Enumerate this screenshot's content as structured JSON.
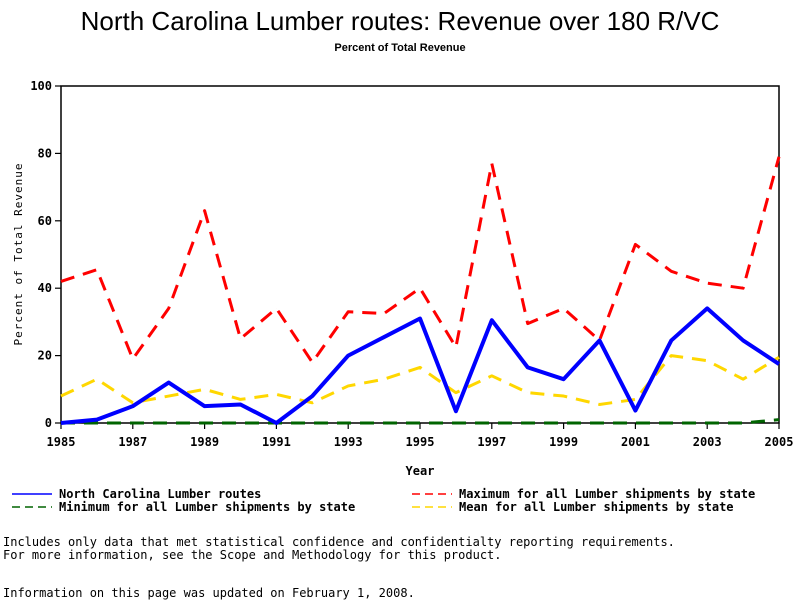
{
  "chart_data": {
    "type": "line",
    "title": "North Carolina Lumber routes: Revenue over 180 R/VC",
    "subtitle": "Percent of Total Revenue",
    "xlabel": "Year",
    "ylabel": "Percent of Total Revenue",
    "xlim": [
      1985,
      2005
    ],
    "ylim": [
      0,
      100
    ],
    "x_ticks": [
      "1985",
      "1987",
      "1989",
      "1991",
      "1993",
      "1995",
      "1997",
      "1999",
      "2001",
      "2003",
      "2005"
    ],
    "y_ticks": [
      "0",
      "20",
      "40",
      "60",
      "80",
      "100"
    ],
    "x": [
      1985,
      1986,
      1987,
      1988,
      1989,
      1990,
      1991,
      1992,
      1993,
      1994,
      1995,
      1996,
      1997,
      1998,
      1999,
      2000,
      2001,
      2002,
      2003,
      2004,
      2005
    ],
    "series": [
      {
        "name": "North Carolina Lumber routes",
        "color": "#0000ff",
        "style": "solid",
        "values": [
          0,
          1,
          5,
          12,
          5,
          5.5,
          0,
          8,
          20,
          25.5,
          31,
          3.5,
          30.5,
          16.5,
          13,
          24.5,
          3.7,
          24.5,
          34,
          24.5,
          17.5
        ]
      },
      {
        "name": "Minimum for all Lumber shipments by state",
        "color": "#006400",
        "style": "dashed",
        "values": [
          0,
          0,
          0,
          0,
          0,
          0,
          0,
          0,
          0,
          0,
          0,
          0,
          0,
          0,
          0,
          0,
          0,
          0,
          0,
          0,
          1
        ]
      },
      {
        "name": "Maximum for all Lumber shipments by state",
        "color": "#ff0000",
        "style": "dashed",
        "values": [
          42,
          45.5,
          19,
          34,
          63,
          25,
          34,
          18,
          33,
          32.5,
          40,
          22.5,
          77,
          29.5,
          34,
          24.5,
          53,
          45,
          41.5,
          40,
          79
        ]
      },
      {
        "name": "Mean for all Lumber shipments by state",
        "color": "#ffd700",
        "style": "dashed",
        "values": [
          8,
          13,
          6,
          8,
          10,
          7,
          8.5,
          6,
          11,
          13,
          16.5,
          9,
          14,
          9,
          8,
          5.5,
          7,
          20,
          18.5,
          13,
          19.5
        ]
      }
    ],
    "grid": false,
    "legend_position": "bottom"
  },
  "notes": {
    "line1": "Includes only data that met statistical confidence and confidentialty reporting requirements.",
    "line2": "For more information, see the Scope and Methodology for this product.",
    "updated": "Information on this page was updated on February 1, 2008."
  }
}
